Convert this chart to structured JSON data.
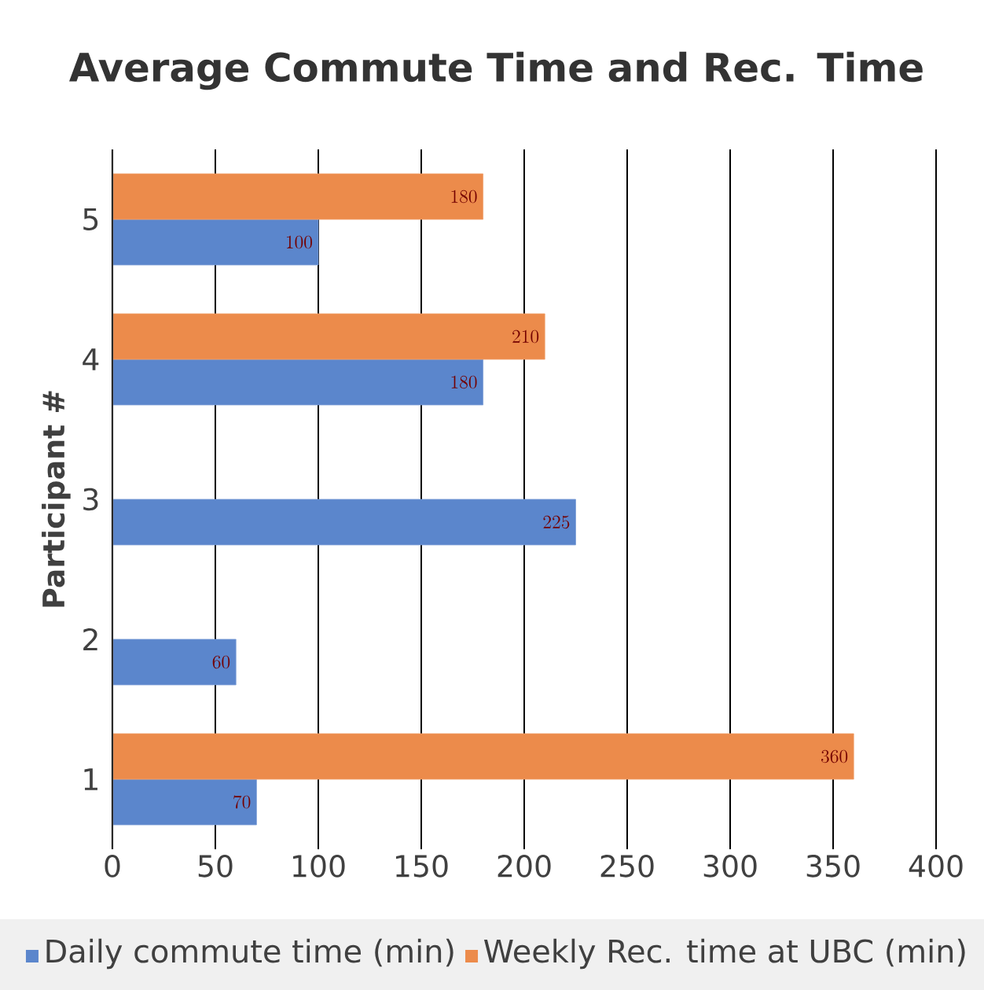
{
  "chart_data": {
    "type": "bar",
    "orientation": "horizontal",
    "title": "Average Commute Time and Rec. Time",
    "ylabel": "Participant #",
    "categories": [
      "5",
      "4",
      "3",
      "2",
      "1"
    ],
    "series": [
      {
        "name": "Daily commute time (min)",
        "color": "#5b86cc",
        "values": [
          100,
          180,
          225,
          60,
          70
        ]
      },
      {
        "name": "Weekly Rec. time at UBC (min)",
        "color": "#ec8b4b",
        "values": [
          180,
          210,
          null,
          null,
          360
        ]
      }
    ],
    "xlim": [
      0,
      400
    ],
    "xticks": [
      0,
      50,
      100,
      150,
      200,
      250,
      300,
      350,
      400
    ],
    "grid": "x",
    "legend": "bottom",
    "data_labels": true
  }
}
